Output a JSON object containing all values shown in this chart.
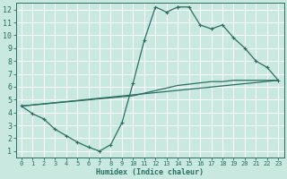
{
  "xlabel": "Humidex (Indice chaleur)",
  "xlim": [
    -0.5,
    23.5
  ],
  "ylim": [
    0.5,
    12.5
  ],
  "xticks": [
    0,
    1,
    2,
    3,
    4,
    5,
    6,
    7,
    8,
    9,
    10,
    11,
    12,
    13,
    14,
    15,
    16,
    17,
    18,
    19,
    20,
    21,
    22,
    23
  ],
  "yticks": [
    1,
    2,
    3,
    4,
    5,
    6,
    7,
    8,
    9,
    10,
    11,
    12
  ],
  "bg_color": "#c8e8e0",
  "line_color": "#2a6e62",
  "grid_color": "#ffffff",
  "line1_x": [
    0,
    1,
    2,
    3,
    4,
    5,
    6,
    7,
    8,
    9,
    10,
    11,
    12,
    13,
    14
  ],
  "line1_y": [
    4.5,
    3.9,
    3.5,
    2.7,
    2.2,
    1.7,
    1.3,
    1.0,
    1.5,
    3.2,
    6.3,
    9.6,
    12.2,
    11.8,
    12.2
  ],
  "line2_x": [
    14,
    15,
    16,
    17,
    18,
    19,
    20,
    21,
    22,
    23
  ],
  "line2_y": [
    12.2,
    12.2,
    10.8,
    10.5,
    10.8,
    9.8,
    9.0,
    8.0,
    7.5,
    6.5
  ],
  "line3_x": [
    0,
    10,
    11,
    12,
    13,
    14,
    15,
    16,
    17,
    18,
    19,
    20,
    21,
    22,
    23
  ],
  "line3_y": [
    4.5,
    5.3,
    5.5,
    5.7,
    5.9,
    6.1,
    6.2,
    6.3,
    6.4,
    6.4,
    6.5,
    6.5,
    6.5,
    6.5,
    6.5
  ],
  "line4_x": [
    0,
    23
  ],
  "line4_y": [
    4.5,
    6.5
  ]
}
